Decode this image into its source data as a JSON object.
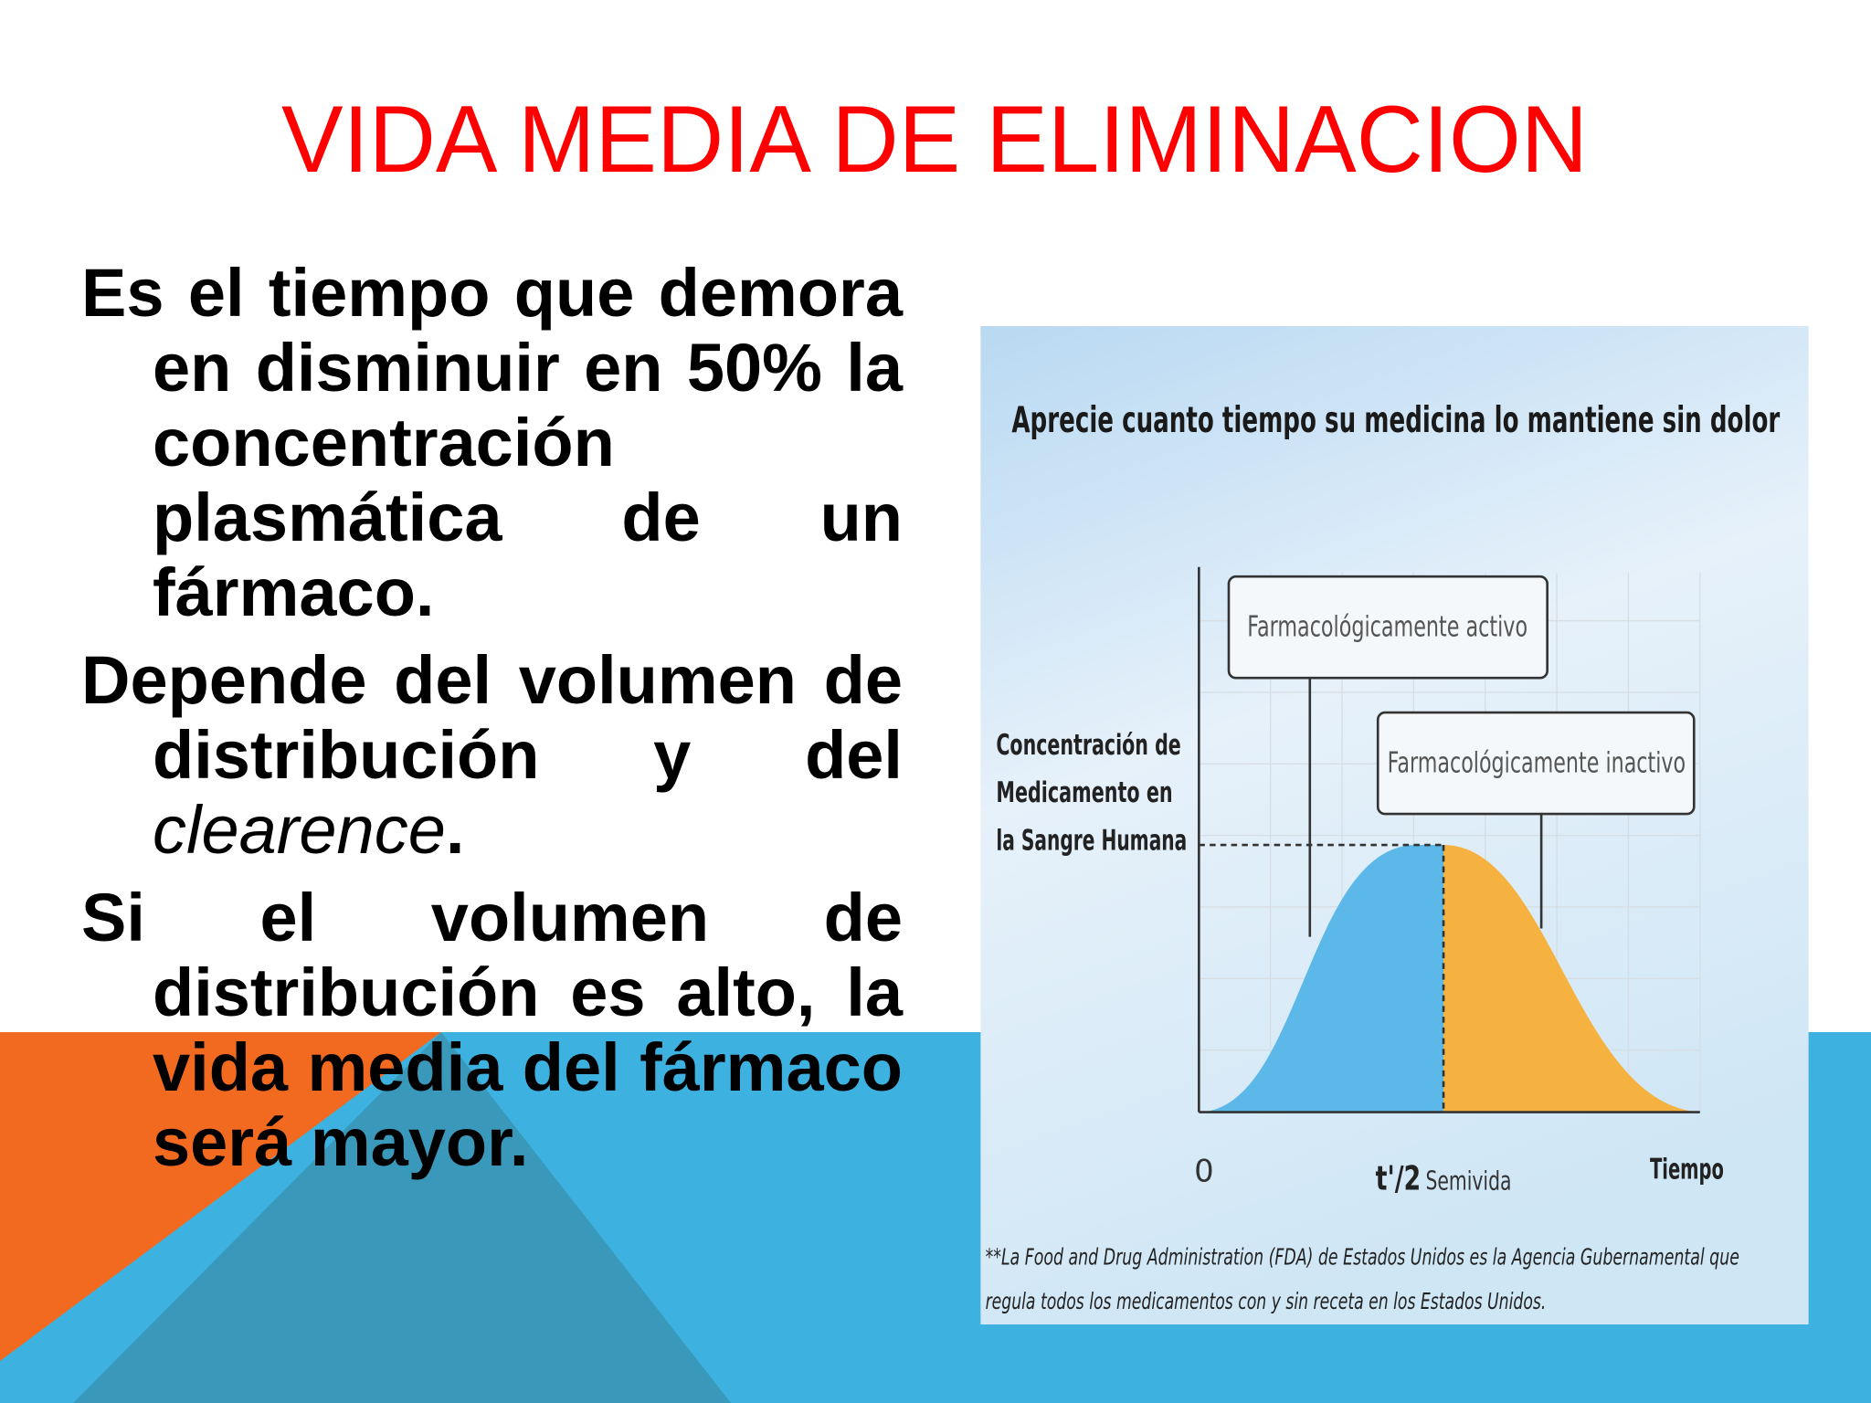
{
  "title": "VIDA MEDIA DE ELIMINACION",
  "bullets": [
    "Es el tiempo que demora en disminuir en 50% la concentración plasmática de un fármaco.",
    {
      "text": "Depende del volumen de distribución y del",
      "emphasis": "clearence",
      "tail": "."
    },
    "Si el volumen de distribución es alto, la vida media del fármaco será mayor."
  ],
  "figure": {
    "title": "Aprecie cuanto tiempo su medicina lo mantiene sin dolor",
    "boxes": [
      "Farmacológicamente activo",
      "Farmacológicamente inactivo"
    ],
    "y_label": [
      "Concentración de",
      "Medicamento en",
      "la Sangre Humana"
    ],
    "x_labels": {
      "origin": "0",
      "half_life": "t'/2",
      "half_life_note": "Semivida",
      "end": "Tiempo"
    },
    "footnote": [
      "**La Food and Drug Administration (FDA) de Estados Unidos es la Agencia Gubernamental que",
      "regula todos los medicamentos con y sin receta en los Estados Unidos."
    ]
  }
}
